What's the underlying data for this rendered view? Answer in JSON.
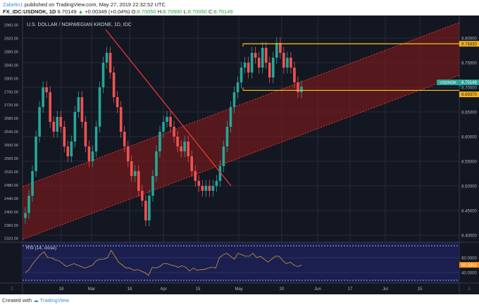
{
  "header": {
    "user": "Zabelin1",
    "published": "published on TradingView.com, May 27, 2019 22:32:52 UTC",
    "symbol": "FX_IDC:USDNOK, 1D",
    "last": "8.70149",
    "change": "+0.00349 (+0.04%)",
    "o_label": "O:",
    "o": "8.70050",
    "h_label": "H:",
    "h": "8.70990",
    "l_label": "L:",
    "l": "8.70050",
    "c_label": "C:",
    "c": "8.70149"
  },
  "footer": {
    "created": "Created with",
    "brand": "TradingView"
  },
  "chart_data": {
    "type": "candlestick",
    "title": "U.S. DOLLAR / NORWEGIAN KRONE, 1D, IDC",
    "left_axis_ticks": [
      "2960.00",
      "2920.00",
      "2880.00",
      "2840.00",
      "2800.00",
      "2760.00",
      "2720.00",
      "2680.00",
      "2640.00",
      "2600.00",
      "2560.00",
      "2520.00",
      "2480.00",
      "2440.00",
      "2400.00",
      "2360.00",
      "2320.00"
    ],
    "right_axis_ticks": [
      "8.80000",
      "8.75000",
      "8.70000",
      "8.65000",
      "8.60000",
      "8.55000",
      "8.50000",
      "8.45000",
      "8.40000"
    ],
    "ylim": [
      8.39,
      8.815
    ],
    "x_ticks": [
      "18",
      "Mar",
      "18",
      "Apr",
      "15",
      "May",
      "20",
      "Jun",
      "17",
      "Jul",
      "15"
    ],
    "closes": [
      8.445,
      8.48,
      8.53,
      8.6,
      8.66,
      8.7,
      8.69,
      8.63,
      8.61,
      8.64,
      8.62,
      8.58,
      8.56,
      8.59,
      8.65,
      8.68,
      8.63,
      8.58,
      8.55,
      8.57,
      8.62,
      8.7,
      8.75,
      8.77,
      8.73,
      8.68,
      8.66,
      8.61,
      8.58,
      8.55,
      8.52,
      8.53,
      8.49,
      8.47,
      8.43,
      8.48,
      8.52,
      8.57,
      8.61,
      8.63,
      8.64,
      8.62,
      8.6,
      8.58,
      8.57,
      8.59,
      8.56,
      8.53,
      8.51,
      8.5,
      8.49,
      8.5,
      8.49,
      8.5,
      8.51,
      8.54,
      8.58,
      8.62,
      8.66,
      8.69,
      8.71,
      8.74,
      8.75,
      8.73,
      8.77,
      8.76,
      8.74,
      8.78,
      8.75,
      8.72,
      8.76,
      8.79,
      8.77,
      8.74,
      8.76,
      8.74,
      8.71,
      8.69,
      8.70149
    ],
    "resistance": 8.7883,
    "support": 8.6937,
    "last_label": "USDNOK",
    "last_price": "8.70149",
    "resistance_label": "8.78830",
    "support_label": "8.69370",
    "rsi": {
      "label": "RSI (14, close)",
      "ticks": [
        "60.0000",
        "40.0000"
      ],
      "last": "50.3302",
      "values": [
        40,
        44,
        52,
        58,
        64,
        68,
        60,
        60,
        57,
        56,
        52,
        48,
        50,
        52,
        50,
        48,
        46,
        48,
        50,
        56,
        58,
        58,
        60,
        70,
        62,
        54,
        50,
        46,
        46,
        43,
        44,
        42,
        40,
        36,
        47,
        46,
        48,
        52,
        52,
        50,
        49,
        47,
        49,
        47,
        42,
        46,
        43,
        44,
        44,
        46,
        47,
        46,
        60,
        64,
        66,
        62,
        58,
        66,
        64,
        62,
        62,
        66,
        60,
        62,
        58,
        54,
        58,
        62,
        62,
        56,
        52,
        54,
        50,
        48,
        50
      ]
    },
    "colors": {
      "up": "#26a69a",
      "down": "#ef5350",
      "bg": "#131722",
      "channel": "#8b1a1a",
      "level": "#f5b41a",
      "rsi_bg": "#1a1f4f",
      "rsi_line": "#d4963a",
      "last": "#26a69a"
    }
  }
}
